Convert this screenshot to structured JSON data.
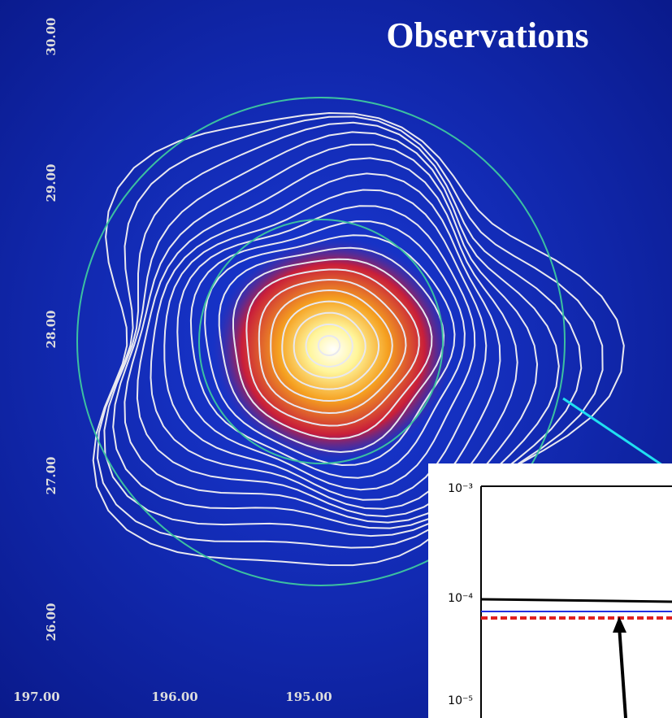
{
  "title": "Observations",
  "image_axes": {
    "y_labels": [
      "30.00",
      "29.00",
      "28.00",
      "27.00",
      "26.00"
    ],
    "x_labels": [
      "197.00",
      "196.00",
      "195.00"
    ]
  },
  "inset": {
    "y_labels": [
      "10⁻³",
      "10⁻⁴",
      "10⁻⁵"
    ]
  }
}
